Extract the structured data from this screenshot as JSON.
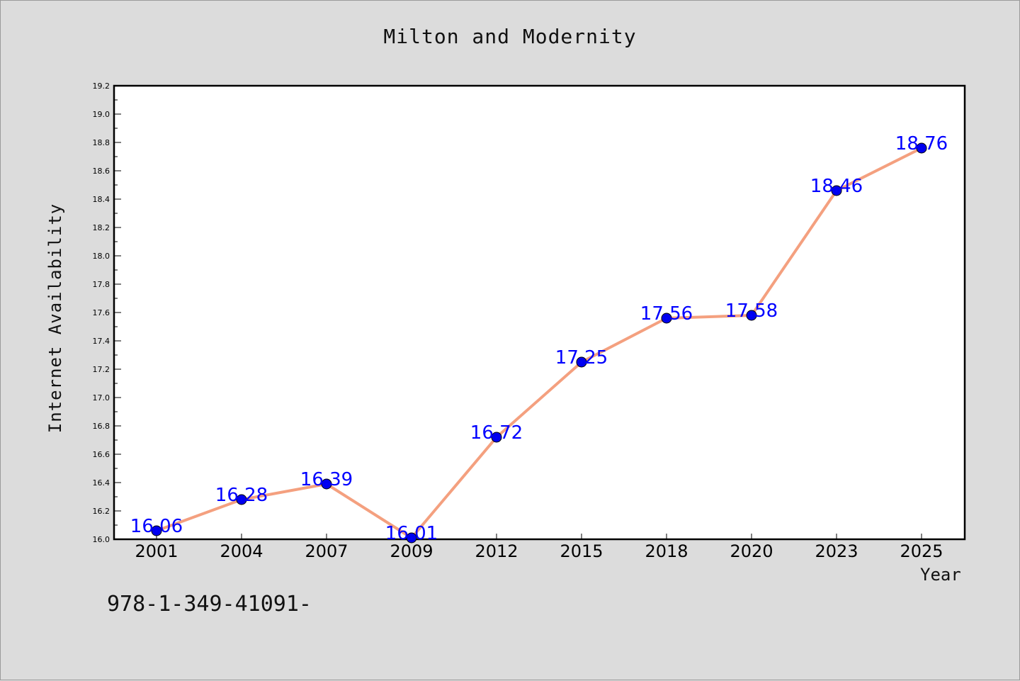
{
  "chart_data": {
    "type": "line",
    "title": "Milton and Modernity",
    "xlabel": "Year",
    "ylabel": "Internet Availability",
    "categories": [
      "2001",
      "2004",
      "2007",
      "2009",
      "2012",
      "2015",
      "2018",
      "2020",
      "2023",
      "2025"
    ],
    "values": [
      16.06,
      16.28,
      16.39,
      16.01,
      16.72,
      17.25,
      17.56,
      17.58,
      18.46,
      18.76
    ],
    "data_labels": [
      "16.06",
      "16.28",
      "16.39",
      "16.01",
      "16.72",
      "17.25",
      "17.56",
      "17.58",
      "18.46",
      "18.76"
    ],
    "ylim": [
      16.0,
      19.2
    ],
    "yticks": [
      "16.0",
      "16.2",
      "16.4",
      "16.6",
      "16.8",
      "17.0",
      "17.2",
      "17.4",
      "17.6",
      "17.8",
      "18.0",
      "18.2",
      "18.4",
      "18.6",
      "18.8",
      "19.0",
      "19.2"
    ],
    "grid": false,
    "line_color": "#f4a07f",
    "marker_color": "#0000ee",
    "label_color": "#0000ff"
  },
  "footer": {
    "isbn": "978-1-349-41091-"
  }
}
